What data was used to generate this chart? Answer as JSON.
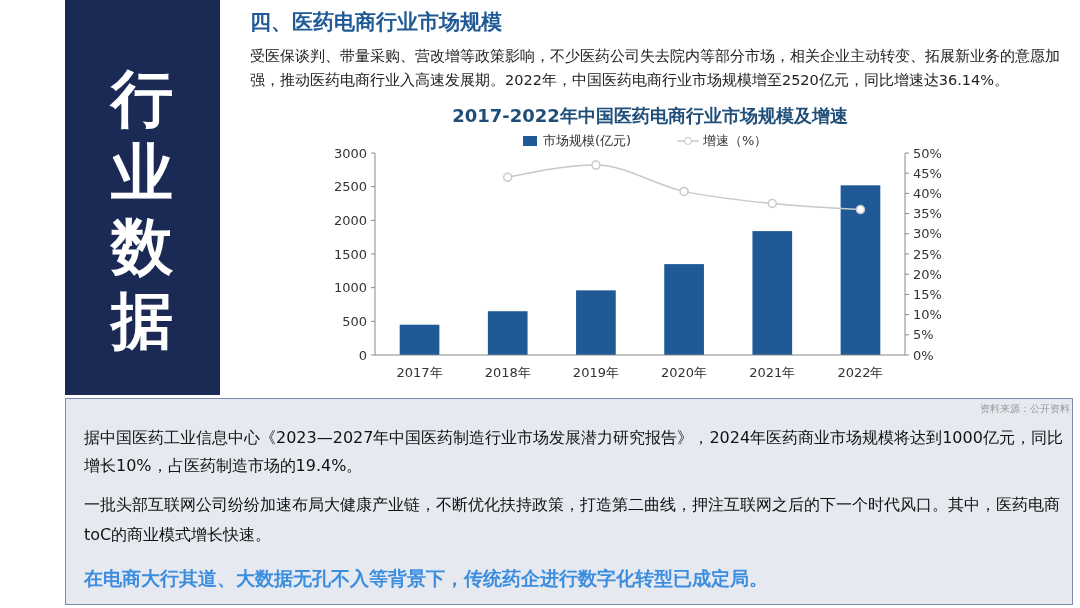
{
  "chart_data": {
    "type": "bar",
    "title": "2017-2022年中国医药电商行业市场规模及增速",
    "categories": [
      "2017年",
      "2018年",
      "2019年",
      "2020年",
      "2021年",
      "2022年"
    ],
    "series": [
      {
        "name": "市场规模(亿元)",
        "color": "#1f5a96",
        "values": [
          450,
          650,
          960,
          1350,
          1840,
          2520
        ]
      },
      {
        "name": "增速（%）",
        "type": "line",
        "axis": "y2",
        "color": "#c8c8c8",
        "marker": "circle",
        "values": [
          null,
          44,
          47,
          40.5,
          37.5,
          36
        ]
      }
    ],
    "ylim": [
      0,
      3000
    ],
    "yticks": [
      0,
      500,
      1000,
      1500,
      2000,
      2500,
      3000
    ],
    "y2lim": [
      0,
      50
    ],
    "y2ticks": [
      {
        "value": 0,
        "label": "0%"
      },
      {
        "value": 5,
        "label": "5%"
      },
      {
        "value": 10,
        "label": "10%"
      },
      {
        "value": 15,
        "label": "15%"
      },
      {
        "value": 20,
        "label": "20%"
      },
      {
        "value": 25,
        "label": "25%"
      },
      {
        "value": 30,
        "label": "30%"
      },
      {
        "value": 35,
        "label": "35%"
      },
      {
        "value": 40,
        "label": "40%"
      },
      {
        "value": 45,
        "label": "45%"
      },
      {
        "value": 50,
        "label": "50%"
      }
    ],
    "legend": "top",
    "grid": false,
    "annotations": [
      "行业数据",
      "四、医药电商行业市场规模",
      "受医保谈判、带量采购、营改增等政策影响，不少医药公司失去院内等部分市场，相关企业主动转变、拓展新业务的意愿加强，推动医药电商行业入高速发展期。2022年，中国医药电商行业市场规模增至2520亿元，同比增速达36.14%。",
      "资料来源：公开资料",
      "据中国医药工业信息中心《2023—2027年中国医药制造行业市场发展潜力研究报告》，2024年医药商业市场规模将达到1000亿元，同比增长10%，占医药制造市场的19.4%。",
      "一批头部互联网公司纷纷加速布局大健康产业链，不断优化扶持政策，打造第二曲线，押注互联网之后的下一个时代风口。其中，医药电商toC的商业模式增长快速。",
      "在电商大行其道、大数据无孔不入等背景下，传统药企进行数字化转型已成定局。"
    ]
  }
}
